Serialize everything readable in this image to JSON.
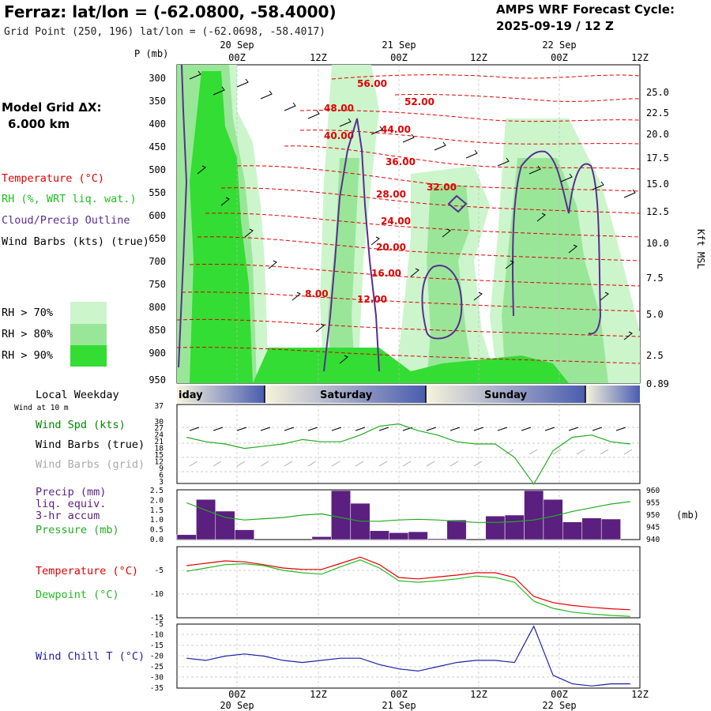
{
  "header": {
    "title": "Ferraz:  lat/lon = (-62.0800, -58.4000)",
    "subtitle": "Grid Point (250, 196) lat/lon = (-62.0698, -58.4017)",
    "cycle_line1": "AMPS WRF Forecast Cycle:",
    "cycle_line2": "2025-09-19 / 12  Z"
  },
  "model_grid": {
    "line1": "Model Grid ΔX:",
    "line2": "6.000 km"
  },
  "legend": {
    "temperature": "Temperature (°C)",
    "rh": "RH (%, WRT liq. wat.)",
    "cloud": "Cloud/Precip Outline",
    "wind_barbs": "Wind Barbs (kts) (true)",
    "rh70": "RH > 70%",
    "rh80": "RH > 80%",
    "rh90": "RH > 90%"
  },
  "colors": {
    "temperature": "#e00000",
    "rh": "#1fbf1f",
    "cloud": "#5a2d91",
    "rh70": "#ccf5cc",
    "rh80": "#99e699",
    "rh90": "#33dd33",
    "wind": "#008800",
    "precip": "#5a1f7f",
    "pressure": "#22aa22",
    "dewpoint": "#22bb22",
    "windchill": "#1f1faa",
    "grid_barbs": "#aaaaaa"
  },
  "top_axis": {
    "time_labels": [
      "00Z",
      "12Z",
      "00Z",
      "12Z",
      "00Z",
      "12Z"
    ],
    "date_labels": [
      "20 Sep",
      "21 Sep",
      "22 Sep"
    ],
    "p_label": "P (mb)",
    "pressure_levels": [
      "300",
      "350",
      "400",
      "450",
      "500",
      "550",
      "600",
      "650",
      "700",
      "750",
      "800",
      "850",
      "900",
      "950"
    ],
    "kft_levels": [
      "25.0",
      "22.5",
      "20.0",
      "17.5",
      "15.0",
      "12.5",
      "10.0",
      "7.5",
      "5.0",
      "2.5",
      "0.89"
    ],
    "kft_label": "Kft MSL"
  },
  "isotherm_labels": [
    "56.00",
    "52.00",
    "48.00",
    "44.00",
    "40.00",
    "36.00",
    "32.00",
    "28.00",
    "24.00",
    "20.00",
    "16.00",
    "12.00",
    "8.00"
  ],
  "weekday": {
    "title": "Local Weekday",
    "days": [
      "iday",
      "Saturday",
      "Sunday"
    ],
    "wind_note": "Wind at 10 m"
  },
  "wind_panel": {
    "label_speed": "Wind Spd (kts)",
    "label_barbs": "Wind Barbs (true)",
    "label_grid": "Wind Barbs (grid)",
    "ticks": [
      "37",
      "30",
      "27",
      "24",
      "21",
      "18",
      "15",
      "12",
      "9",
      "6",
      "3"
    ]
  },
  "precip_panel": {
    "label1": "Precip (mm)",
    "label2": "liq. equiv.",
    "label3": "3-hr accum",
    "label4": "Pressure (mb)",
    "left_ticks": [
      "2.5",
      "2.0",
      "1.5",
      "1.0",
      "0.5",
      "0.0"
    ],
    "right_ticks": [
      "960",
      "955",
      "950",
      "945",
      "940"
    ],
    "unit": "(mb)"
  },
  "temp_panel": {
    "label_temp": "Temperature (°C)",
    "label_dew": "Dewpoint (°C)",
    "ticks": [
      "-5",
      "-10",
      "-15"
    ]
  },
  "wc_panel": {
    "label": "Wind Chill T (°C)",
    "ticks": [
      "-5",
      "-10",
      "-15",
      "-20",
      "-25",
      "-30",
      "-35"
    ]
  },
  "bottom_axis": {
    "time_labels": [
      "00Z",
      "12Z",
      "00Z",
      "12Z",
      "00Z",
      "12Z"
    ],
    "date_labels": [
      "20 Sep",
      "21 Sep",
      "22 Sep"
    ]
  },
  "chart_data": [
    {
      "type": "line",
      "title": "Wind Speed (kts) at 10 m",
      "x_hours": [
        0,
        3,
        6,
        9,
        12,
        15,
        18,
        21,
        24,
        27,
        30,
        33,
        36,
        39,
        42,
        45,
        48,
        51,
        54,
        57,
        60,
        63,
        66,
        69
      ],
      "values": [
        23,
        21,
        20,
        18,
        19,
        20,
        22,
        21,
        21,
        24,
        28,
        29,
        26,
        24,
        21,
        20,
        20,
        14,
        2,
        17,
        23,
        24,
        21,
        20
      ],
      "ylim": [
        3,
        37
      ]
    },
    {
      "type": "bar",
      "title": "Precip (mm) 3-hr accum",
      "x_hours": [
        0,
        3,
        6,
        9,
        12,
        15,
        18,
        21,
        24,
        27,
        30,
        33,
        36,
        39,
        42,
        45,
        48,
        51,
        54,
        57,
        60,
        63,
        66,
        69
      ],
      "values": [
        0.25,
        2.05,
        1.45,
        0.5,
        0,
        0,
        0,
        0.15,
        2.5,
        1.85,
        0.45,
        0.35,
        0.4,
        0.05,
        1.0,
        0,
        1.2,
        1.25,
        2.5,
        2.05,
        0.9,
        1.1,
        1.05,
        0
      ],
      "ylim": [
        0,
        2.5
      ]
    },
    {
      "type": "line",
      "title": "Pressure (mb)",
      "x_hours": [
        0,
        3,
        6,
        9,
        12,
        15,
        18,
        21,
        24,
        27,
        30,
        33,
        36,
        39,
        42,
        45,
        48,
        51,
        54,
        57,
        60,
        63,
        66,
        69
      ],
      "values": [
        955,
        952,
        949,
        948,
        948.5,
        949,
        950,
        950.5,
        949,
        947.5,
        947.5,
        948,
        948.3,
        948,
        947.5,
        947,
        947,
        947.3,
        948,
        949.5,
        951.5,
        953,
        954.5,
        955.5
      ],
      "ylim": [
        940,
        960
      ]
    },
    {
      "type": "line",
      "title": "Temperature (°C)",
      "series": [
        {
          "name": "Temperature",
          "values": [
            -4.0,
            -3.5,
            -3.0,
            -3.2,
            -3.8,
            -4.5,
            -4.8,
            -4.8,
            -3.5,
            -2.2,
            -3.8,
            -6.5,
            -6.8,
            -6.4,
            -6.0,
            -5.5,
            -5.5,
            -6.5,
            -10.5,
            -11.8,
            -12.4,
            -12.8,
            -13.1,
            -13.3
          ]
        },
        {
          "name": "Dewpoint",
          "values": [
            -5.2,
            -4.5,
            -3.8,
            -3.6,
            -4.0,
            -5.0,
            -5.5,
            -5.8,
            -4.2,
            -2.8,
            -4.5,
            -7.2,
            -7.5,
            -7.2,
            -6.8,
            -6.2,
            -6.5,
            -7.5,
            -11.5,
            -13.0,
            -13.8,
            -14.2,
            -14.5,
            -14.7
          ]
        }
      ],
      "x_hours": [
        0,
        3,
        6,
        9,
        12,
        15,
        18,
        21,
        24,
        27,
        30,
        33,
        36,
        39,
        42,
        45,
        48,
        51,
        54,
        57,
        60,
        63,
        66,
        69
      ],
      "ylim": [
        -15,
        0
      ]
    },
    {
      "type": "line",
      "title": "Wind Chill T (°C)",
      "x_hours": [
        0,
        3,
        6,
        9,
        12,
        15,
        18,
        21,
        24,
        27,
        30,
        33,
        36,
        39,
        42,
        45,
        48,
        51,
        54,
        57,
        60,
        63,
        66,
        69
      ],
      "values": [
        -21,
        -22,
        -20,
        -19,
        -20,
        -22,
        -23,
        -22,
        -21,
        -21,
        -24,
        -26,
        -27,
        -25,
        -23,
        -22,
        -22,
        -23,
        -6,
        -29,
        -33,
        -34,
        -33,
        -33
      ],
      "ylim": [
        -35,
        -5
      ]
    }
  ]
}
